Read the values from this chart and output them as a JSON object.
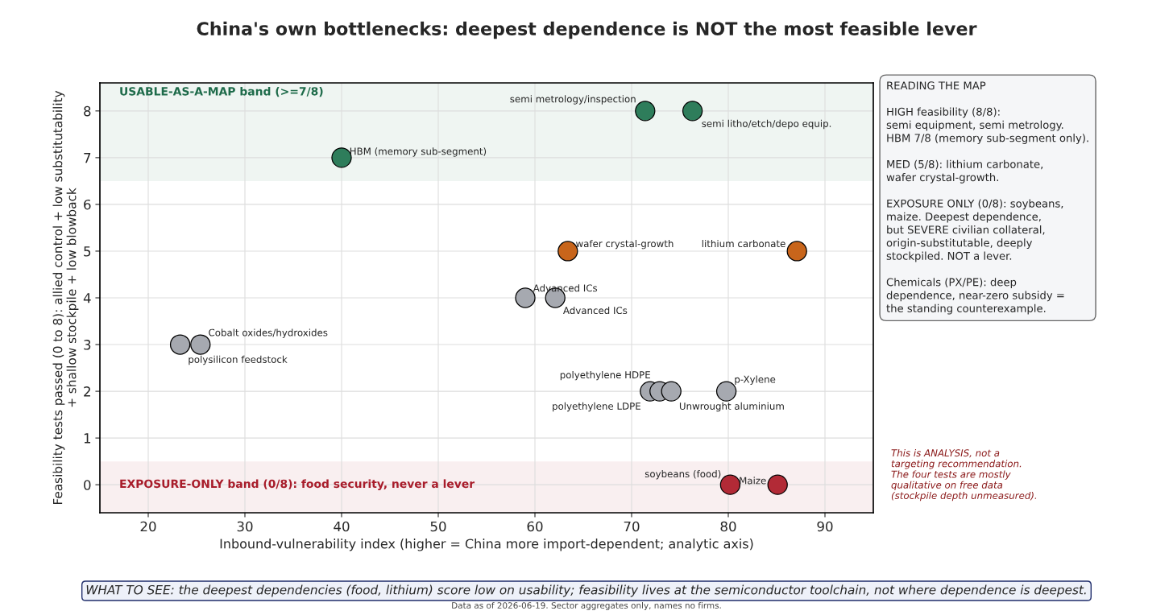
{
  "chart_data": {
    "type": "scatter",
    "title": "China's own bottlenecks: deepest dependence is NOT the most feasible lever",
    "xlabel": "Inbound-vulnerability index (higher = China more import-dependent; analytic axis)",
    "ylabel": "Feasibility tests passed (0 to 8): allied control + low substitutability\n+ shallow stockpile + low blowback",
    "xlim": [
      15,
      95
    ],
    "xticks": [
      20,
      30,
      40,
      50,
      60,
      70,
      80,
      90
    ],
    "ylim": [
      -0.6,
      8.6
    ],
    "yticks": [
      0,
      1,
      2,
      3,
      4,
      5,
      6,
      7,
      8
    ],
    "grid": true,
    "legend": false,
    "marker": "circle",
    "series": [
      {
        "color": "#2e7d5b",
        "x": [
          71.4,
          76.3,
          40.0
        ],
        "values": [
          8,
          8,
          7
        ]
      },
      {
        "color": "#c8651b",
        "x": [
          63.4,
          87.1
        ],
        "values": [
          5,
          5
        ]
      },
      {
        "color": "#a6a9b0",
        "x": [
          59.0,
          62.1,
          23.3,
          25.4,
          71.9,
          72.9,
          74.1,
          79.8
        ],
        "values": [
          4,
          4,
          3,
          3,
          2,
          2,
          2,
          2
        ]
      },
      {
        "color": "#b22a36",
        "x": [
          80.2,
          85.1
        ],
        "values": [
          0,
          0
        ]
      }
    ],
    "bands": [
      {
        "axis": "y",
        "from": 6.5,
        "to": 8.6,
        "label": "USABLE-AS-A-MAP band (>=7/8)",
        "color": "#1e6b4a"
      },
      {
        "axis": "y",
        "from": -0.6,
        "to": 0.5,
        "label": "EXPOSURE-ONLY band (0/8): food security, never a lever",
        "color": "#a81c2a"
      }
    ],
    "annotations": [
      {
        "text": "semi metrology/inspection",
        "x": 71.4,
        "y": 8
      },
      {
        "text": "semi litho/etch/depo equip.",
        "x": 76.3,
        "y": 8
      },
      {
        "text": "HBM (memory sub-segment)",
        "x": 40.0,
        "y": 7
      },
      {
        "text": "wafer crystal-growth",
        "x": 63.4,
        "y": 5
      },
      {
        "text": "lithium carbonate",
        "x": 87.1,
        "y": 5
      },
      {
        "text": "Advanced ICs",
        "x": 59.0,
        "y": 4
      },
      {
        "text": "Advanced ICs",
        "x": 62.1,
        "y": 4
      },
      {
        "text": "polysilicon feedstock",
        "x": 23.3,
        "y": 3
      },
      {
        "text": "Cobalt oxides/hydroxides",
        "x": 25.4,
        "y": 3
      },
      {
        "text": "polyethylene HDPE",
        "x": 72.9,
        "y": 2
      },
      {
        "text": "polyethylene LDPE",
        "x": 71.9,
        "y": 2
      },
      {
        "text": "Unwrought aluminium",
        "x": 74.1,
        "y": 2
      },
      {
        "text": "p-Xylene",
        "x": 79.8,
        "y": 2
      },
      {
        "text": "soybeans (food)",
        "x": 80.2,
        "y": 0
      },
      {
        "text": "Maize",
        "x": 85.1,
        "y": 0
      },
      "READING THE MAP\n\nHIGH feasibility (8/8):\nsemi equipment, semi metrology.\nHBM 7/8 (memory sub-segment only).\n\nMED (5/8): lithium carbonate,\nwafer crystal-growth.\n\nEXPOSURE ONLY (0/8): soybeans,\nmaize. Deepest dependence,\nbut SEVERE civilian collateral,\norigin-substitutable, deeply\nstockpiled. NOT a lever.\n\nChemicals (PX/PE): deep\ndependence, near-zero subsidy =\nthe standing counterexample.",
      "This is ANALYSIS, not a\ntargeting recommendation.\nThe four tests are mostly\nqualitative on free data\n(stockpile depth unmeasured).",
      "WHAT TO SEE: the deepest dependencies (food, lithium) score low on usability; feasibility lives at the semiconductor toolchain, not where dependence is deepest.",
      "Data as of 2026-06-19. Sector aggregates only, names no firms."
    ]
  }
}
